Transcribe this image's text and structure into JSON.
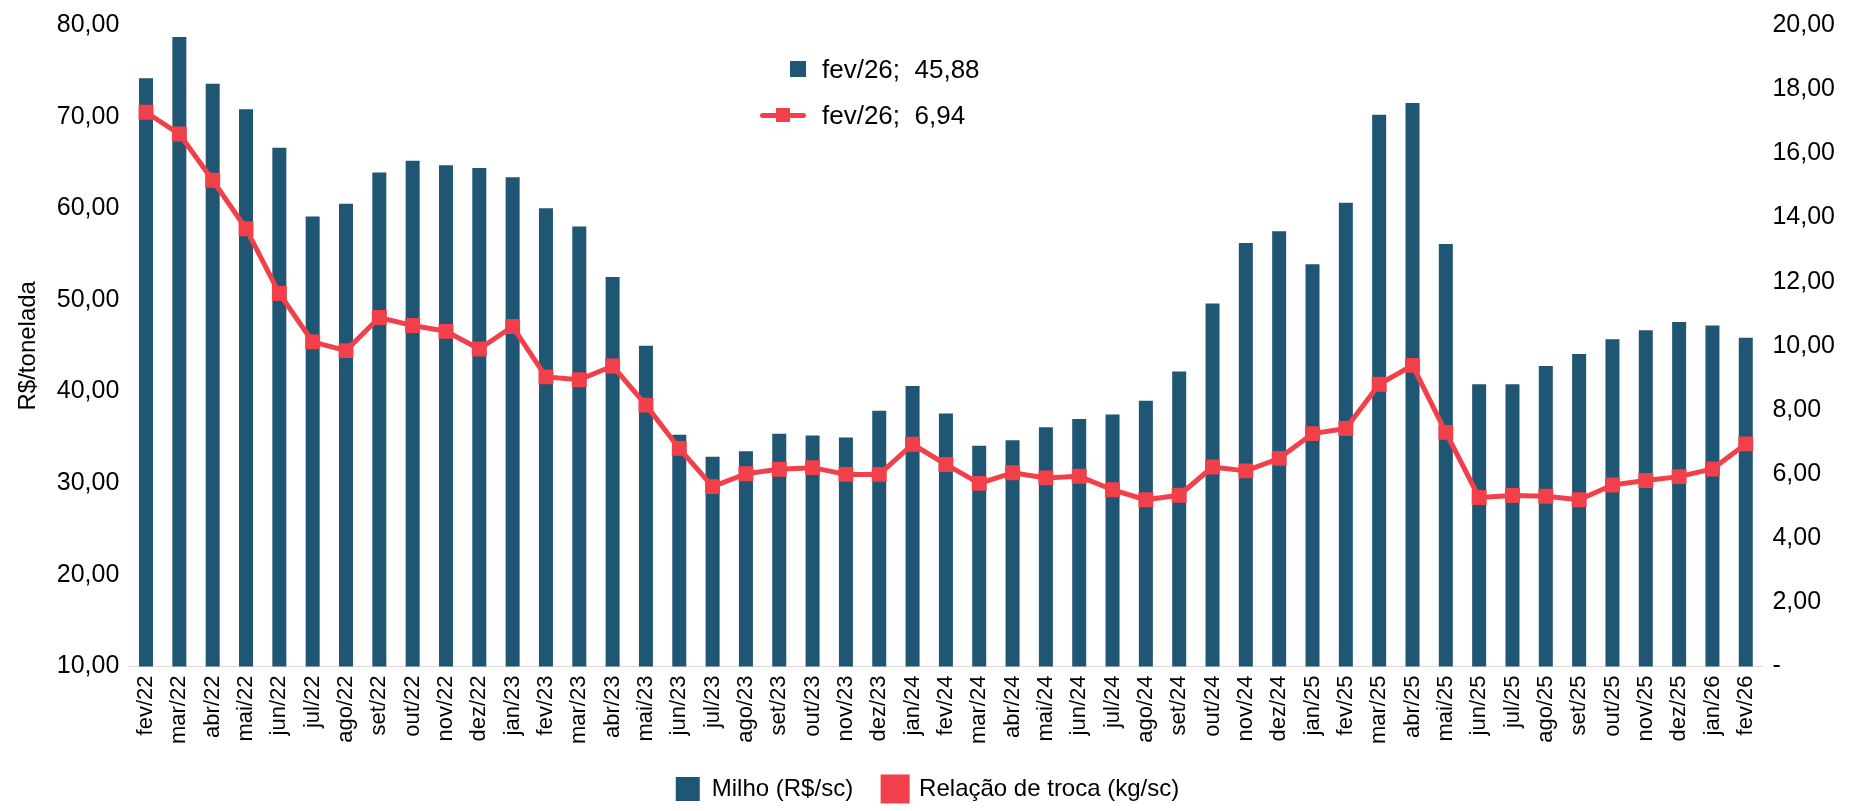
{
  "chart_data": {
    "type": "bar",
    "ylabel": "R$/tonelada",
    "categories": [
      "fev/22",
      "mar/22",
      "abr/22",
      "mai/22",
      "jun/22",
      "jul/22",
      "ago/22",
      "set/22",
      "out/22",
      "nov/22",
      "dez/22",
      "jan/23",
      "fev/23",
      "mar/23",
      "abr/23",
      "mai/23",
      "jun/23",
      "jul/23",
      "ago/23",
      "set/23",
      "out/23",
      "nov/23",
      "dez/23",
      "jan/24",
      "fev/24",
      "mar/24",
      "abr/24",
      "mai/24",
      "jun/24",
      "jul/24",
      "ago/24",
      "set/24",
      "out/24",
      "nov/24",
      "dez/24",
      "jan/25",
      "fev/25",
      "mar/25",
      "abr/25",
      "mai/25",
      "jun/25",
      "jul/25",
      "ago/25",
      "set/25",
      "out/25",
      "nov/25",
      "dez/25",
      "jan/26",
      "fev/26"
    ],
    "series": [
      {
        "name": "Milho (R$/sc)",
        "color": "#1f5673",
        "values": [
          74.2,
          78.7,
          73.6,
          70.8,
          66.6,
          59.1,
          60.5,
          63.9,
          65.2,
          64.7,
          64.4,
          63.4,
          60.0,
          58.0,
          52.5,
          45.0,
          35.3,
          32.9,
          33.5,
          35.4,
          35.2,
          35.0,
          37.9,
          40.6,
          37.6,
          34.1,
          34.7,
          36.1,
          37.0,
          37.5,
          39.0,
          42.2,
          49.6,
          56.2,
          57.5,
          53.9,
          60.6,
          70.2,
          71.5,
          56.1,
          40.8,
          40.8,
          42.8,
          44.1,
          45.7,
          46.7,
          47.6,
          47.2,
          45.88
        ]
      },
      {
        "name": "Relação de troca (kg/sc)",
        "type": "line",
        "axis": "y2",
        "color": "#f2404a",
        "marker": "square",
        "line_style": "solid",
        "values": [
          17.28,
          16.6,
          15.16,
          13.65,
          11.63,
          10.12,
          9.85,
          10.88,
          10.63,
          10.45,
          9.9,
          10.6,
          9.03,
          8.94,
          9.37,
          8.15,
          6.8,
          5.61,
          6.01,
          6.15,
          6.2,
          5.99,
          5.99,
          6.93,
          6.3,
          5.71,
          6.04,
          5.88,
          5.93,
          5.51,
          5.2,
          5.34,
          6.22,
          6.1,
          6.49,
          7.26,
          7.42,
          8.8,
          9.39,
          7.3,
          5.27,
          5.33,
          5.31,
          5.2,
          5.66,
          5.8,
          5.92,
          6.16,
          6.94
        ]
      }
    ],
    "ylim": [
      10,
      80
    ],
    "yticks": [
      {
        "value": 10,
        "label": "10,00"
      },
      {
        "value": 20,
        "label": "20,00"
      },
      {
        "value": 30,
        "label": "30,00"
      },
      {
        "value": 40,
        "label": "40,00"
      },
      {
        "value": 50,
        "label": "50,00"
      },
      {
        "value": 60,
        "label": "60,00"
      },
      {
        "value": 70,
        "label": "70,00"
      },
      {
        "value": 80,
        "label": "80,00"
      }
    ],
    "y2lim": [
      0,
      20
    ],
    "y2ticks": [
      {
        "value": 0,
        "label": "-"
      },
      {
        "value": 2,
        "label": "2,00"
      },
      {
        "value": 4,
        "label": "4,00"
      },
      {
        "value": 6,
        "label": "6,00"
      },
      {
        "value": 8,
        "label": "8,00"
      },
      {
        "value": 10,
        "label": "10,00"
      },
      {
        "value": 12,
        "label": "12,00"
      },
      {
        "value": 14,
        "label": "14,00"
      },
      {
        "value": 16,
        "label": "16,00"
      },
      {
        "value": 18,
        "label": "18,00"
      },
      {
        "value": 20,
        "label": "20,00"
      }
    ],
    "annotations": [
      "fev/26;  45,88",
      "fev/26;  6,94"
    ],
    "grid": false,
    "legend": "bottom"
  }
}
